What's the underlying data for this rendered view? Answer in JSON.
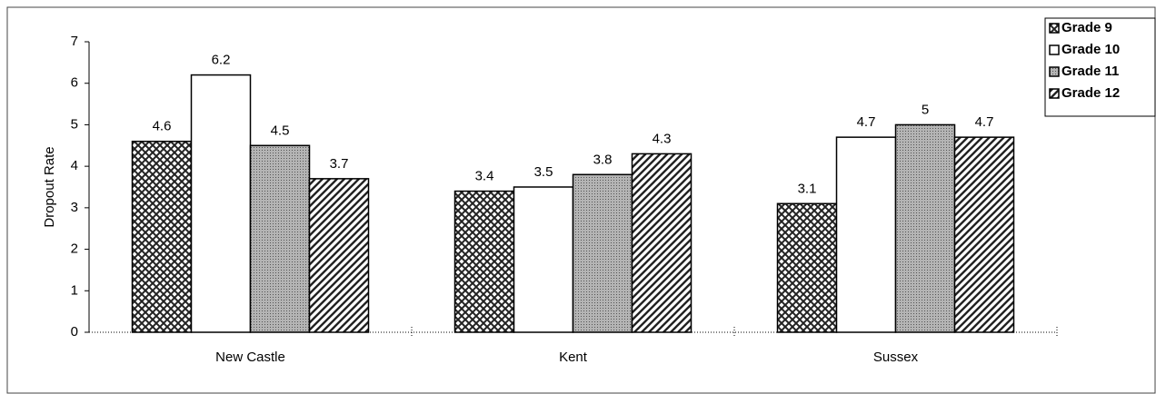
{
  "chart_data": {
    "type": "bar",
    "y_label": "Dropout Rate",
    "categories": [
      "New Castle",
      "Kent",
      "Sussex"
    ],
    "series": [
      {
        "name": "Grade 9",
        "color": "#222222",
        "pattern": "crosshatch",
        "values": [
          4.6,
          3.4,
          3.1
        ]
      },
      {
        "name": "Grade 10",
        "color": "#ffffff",
        "pattern": "solid",
        "values": [
          6.2,
          3.5,
          4.7
        ]
      },
      {
        "name": "Grade 11",
        "color": "#aaaaaa",
        "pattern": "dots",
        "values": [
          4.5,
          3.8,
          5
        ]
      },
      {
        "name": "Grade 12",
        "color": "#222222",
        "pattern": "diagonal",
        "values": [
          3.7,
          4.3,
          4.7
        ]
      }
    ],
    "ylim": [
      0,
      7
    ],
    "yticks": [
      0,
      1,
      2,
      3,
      4,
      5,
      6,
      7
    ],
    "legend": "top-right"
  }
}
